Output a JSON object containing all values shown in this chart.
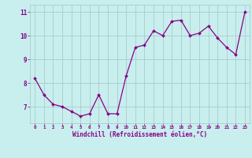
{
  "x": [
    0,
    1,
    2,
    3,
    4,
    5,
    6,
    7,
    8,
    9,
    10,
    11,
    12,
    13,
    14,
    15,
    16,
    17,
    18,
    19,
    20,
    21,
    22,
    23
  ],
  "y": [
    8.2,
    7.5,
    7.1,
    7.0,
    6.8,
    6.6,
    6.7,
    7.5,
    6.7,
    6.7,
    8.3,
    9.5,
    9.6,
    10.2,
    10.0,
    10.6,
    10.65,
    10.0,
    10.1,
    10.4,
    9.9,
    9.5,
    9.2,
    11.0
  ],
  "line_color": "#880088",
  "marker_color": "#880088",
  "bg_color": "#c8eeee",
  "grid_color": "#aacccc",
  "xlabel": "Windchill (Refroidissement éolien,°C)",
  "xlabel_color": "#880088",
  "tick_color": "#880088",
  "ylim": [
    6.3,
    11.3
  ],
  "yticks": [
    7,
    8,
    9,
    10,
    11
  ],
  "xlim": [
    -0.5,
    23.5
  ]
}
